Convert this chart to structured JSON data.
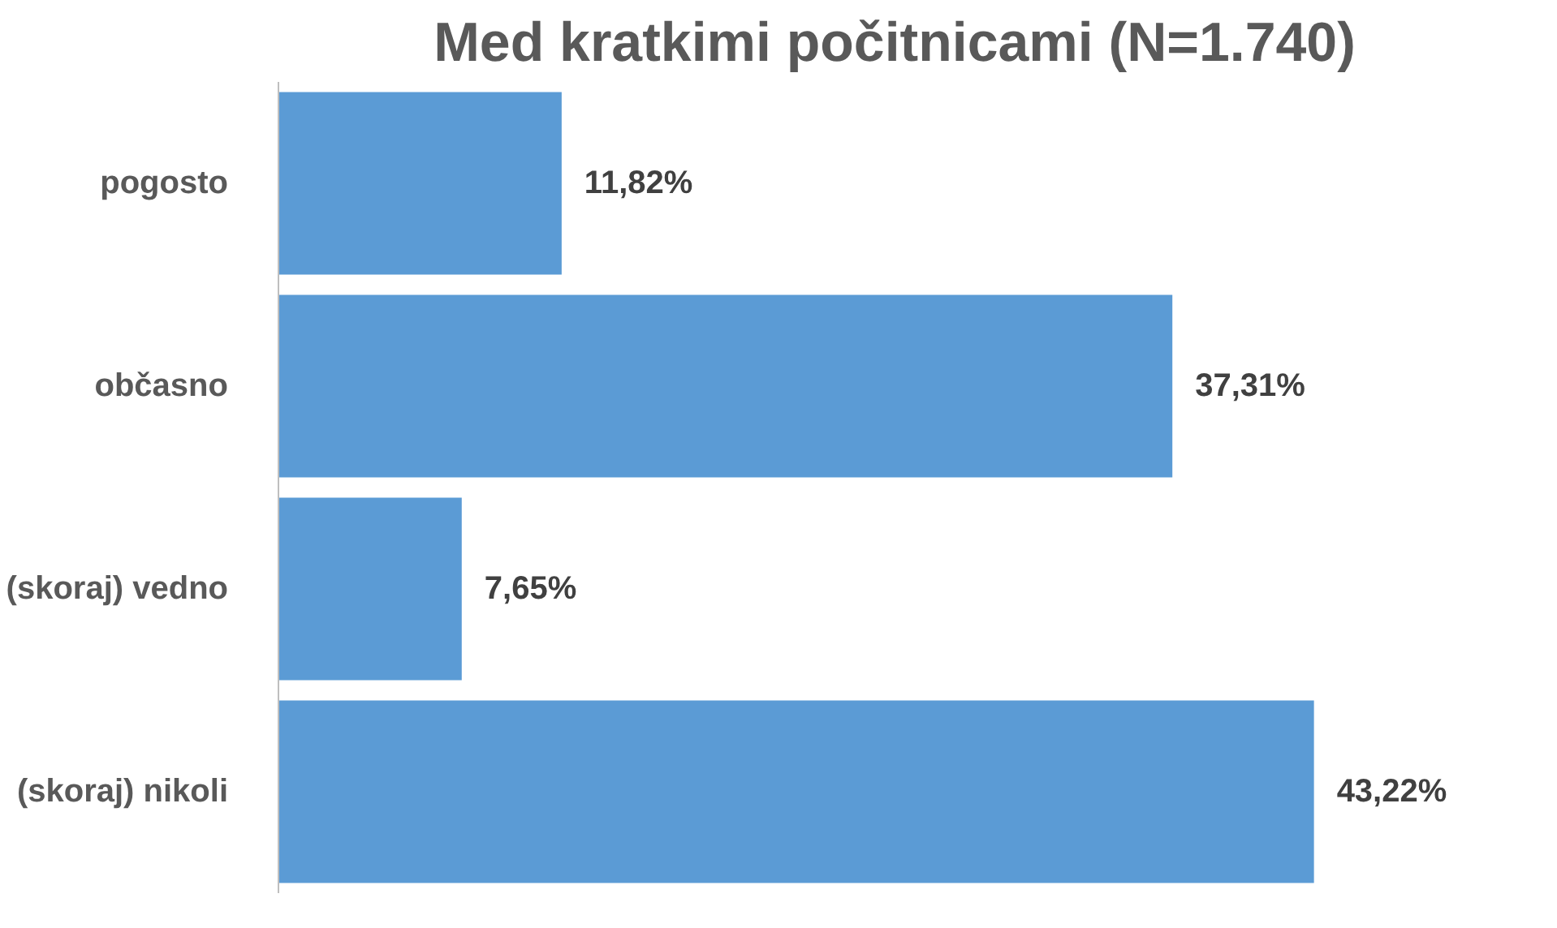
{
  "chart_data": {
    "type": "bar",
    "orientation": "horizontal",
    "title": "Med kratkimi počitnicami (N=1.740)",
    "categories": [
      "pogosto",
      "občasno",
      "(skoraj) vedno",
      "(skoraj) nikoli"
    ],
    "values": [
      11.82,
      37.31,
      7.65,
      43.22
    ],
    "value_labels": [
      "11,82%",
      "37,31%",
      "7,65%",
      "43,22%"
    ],
    "color": "#5b9bd5",
    "grid": false,
    "tick_labels": "y"
  }
}
